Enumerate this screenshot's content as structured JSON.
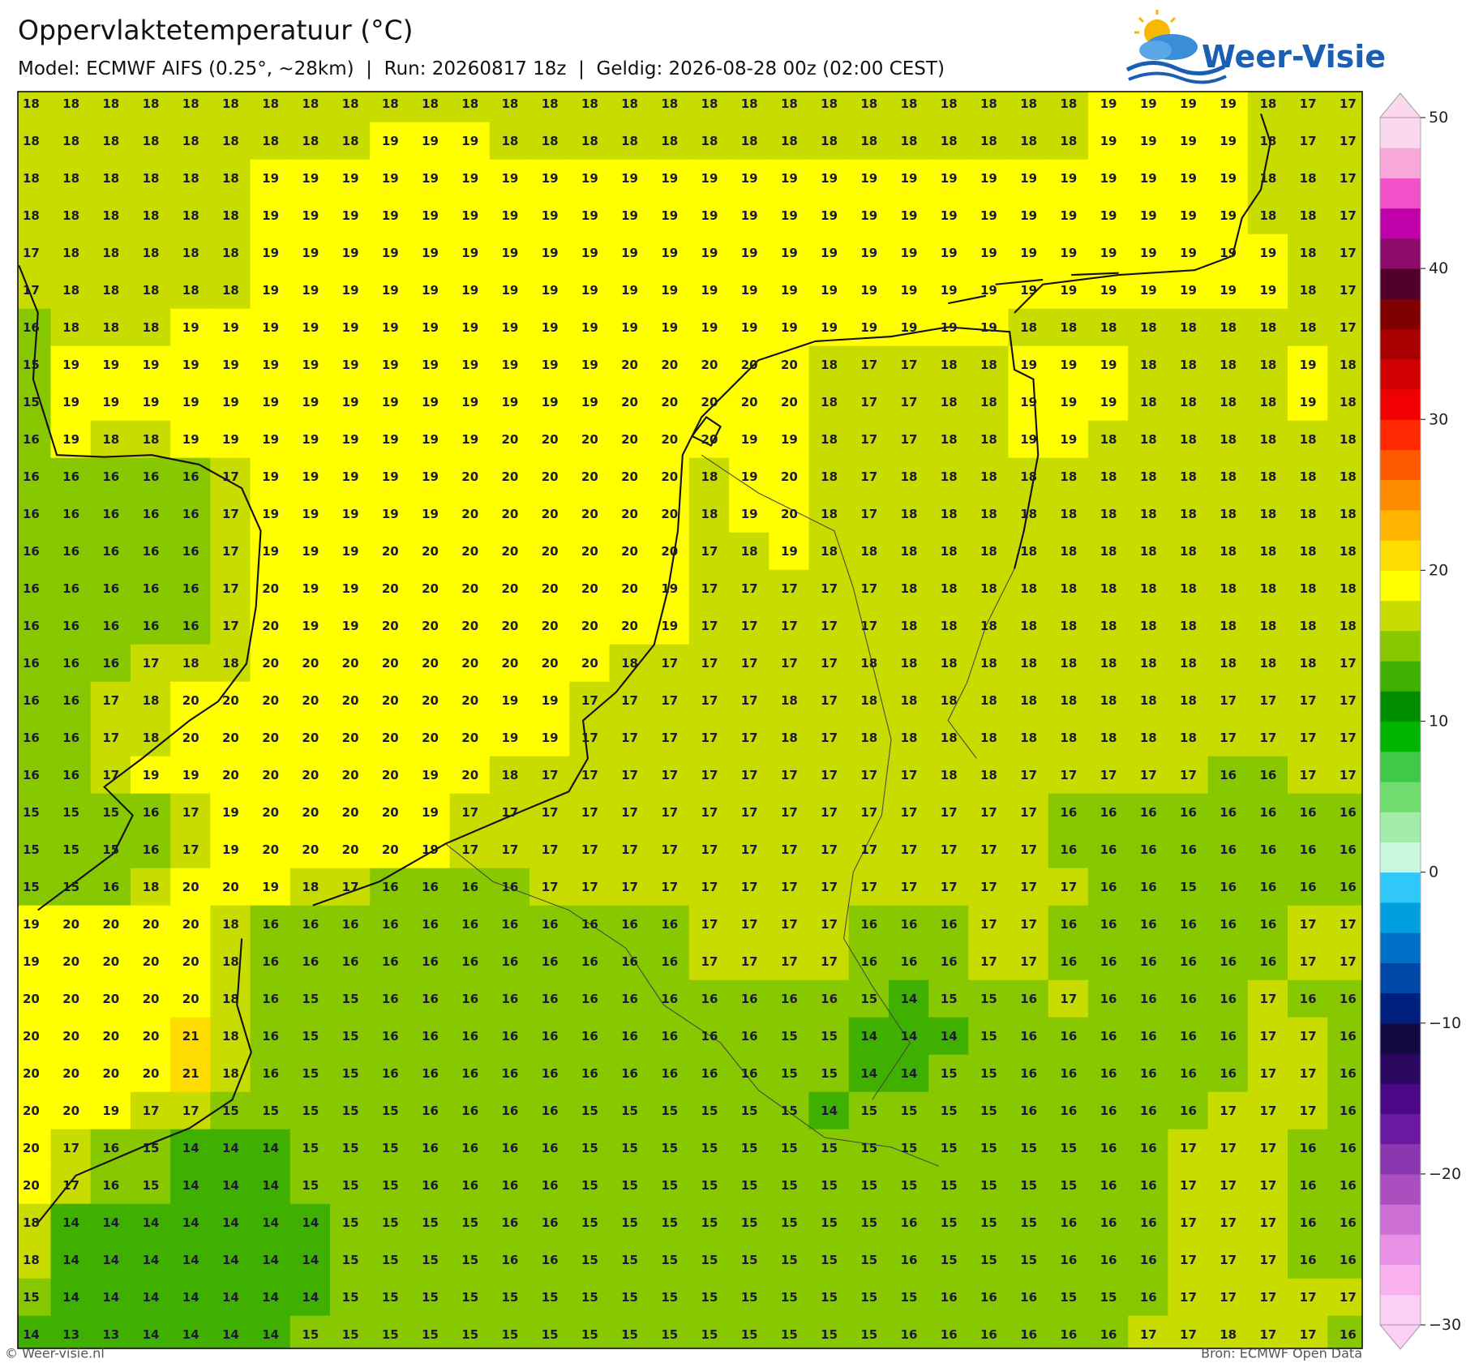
{
  "header": {
    "title": "Oppervlaktetemperatuur (°C)",
    "subtitle": "Model: ECMWF AIFS (0.25°, ~28km)  |  Run: 20260817 18z  |  Geldig: 2026-08-28 00z (02:00 CEST)",
    "logo": "Weer-Visie"
  },
  "map": {
    "values": [
      [
        18,
        18,
        18,
        18,
        18,
        18,
        18,
        18,
        18,
        18,
        18,
        18,
        18,
        18,
        18,
        18,
        18,
        18,
        18,
        18,
        18,
        18,
        18,
        18,
        18,
        18,
        18,
        19,
        19,
        19,
        19,
        18,
        17,
        17
      ],
      [
        18,
        18,
        18,
        18,
        18,
        18,
        18,
        18,
        18,
        19,
        19,
        19,
        18,
        18,
        18,
        18,
        18,
        18,
        18,
        18,
        18,
        18,
        18,
        18,
        18,
        18,
        18,
        19,
        19,
        19,
        19,
        18,
        17,
        17
      ],
      [
        18,
        18,
        18,
        18,
        18,
        18,
        19,
        19,
        19,
        19,
        19,
        19,
        19,
        19,
        19,
        19,
        19,
        19,
        19,
        19,
        19,
        19,
        19,
        19,
        19,
        19,
        19,
        19,
        19,
        19,
        19,
        18,
        18,
        17
      ],
      [
        18,
        18,
        18,
        18,
        18,
        18,
        19,
        19,
        19,
        19,
        19,
        19,
        19,
        19,
        19,
        19,
        19,
        19,
        19,
        19,
        19,
        19,
        19,
        19,
        19,
        19,
        19,
        19,
        19,
        19,
        19,
        18,
        18,
        17
      ],
      [
        17,
        18,
        18,
        18,
        18,
        18,
        19,
        19,
        19,
        19,
        19,
        19,
        19,
        19,
        19,
        19,
        19,
        19,
        19,
        19,
        19,
        19,
        19,
        19,
        19,
        19,
        19,
        19,
        19,
        19,
        19,
        19,
        18,
        17
      ],
      [
        17,
        18,
        18,
        18,
        18,
        18,
        19,
        19,
        19,
        19,
        19,
        19,
        19,
        19,
        19,
        19,
        19,
        19,
        19,
        19,
        19,
        19,
        19,
        19,
        19,
        19,
        19,
        19,
        19,
        19,
        19,
        19,
        18,
        17
      ],
      [
        16,
        18,
        18,
        18,
        19,
        19,
        19,
        19,
        19,
        19,
        19,
        19,
        19,
        19,
        19,
        19,
        19,
        19,
        19,
        19,
        19,
        19,
        19,
        19,
        19,
        18,
        18,
        18,
        18,
        18,
        18,
        18,
        18,
        17
      ],
      [
        15,
        19,
        19,
        19,
        19,
        19,
        19,
        19,
        19,
        19,
        19,
        19,
        19,
        19,
        19,
        20,
        20,
        20,
        20,
        20,
        18,
        17,
        17,
        18,
        18,
        19,
        19,
        19,
        18,
        18,
        18,
        18,
        19,
        18
      ],
      [
        15,
        19,
        19,
        19,
        19,
        19,
        19,
        19,
        19,
        19,
        19,
        19,
        19,
        19,
        19,
        20,
        20,
        20,
        20,
        20,
        18,
        17,
        17,
        18,
        18,
        19,
        19,
        19,
        18,
        18,
        18,
        18,
        19,
        18
      ],
      [
        16,
        19,
        18,
        18,
        19,
        19,
        19,
        19,
        19,
        19,
        19,
        19,
        20,
        20,
        20,
        20,
        20,
        20,
        19,
        19,
        18,
        17,
        17,
        18,
        18,
        19,
        19,
        18,
        18,
        18,
        18,
        18,
        18,
        18
      ],
      [
        16,
        16,
        16,
        16,
        16,
        17,
        19,
        19,
        19,
        19,
        19,
        20,
        20,
        20,
        20,
        20,
        20,
        18,
        19,
        20,
        18,
        17,
        18,
        18,
        18,
        18,
        18,
        18,
        18,
        18,
        18,
        18,
        18,
        18
      ],
      [
        16,
        16,
        16,
        16,
        16,
        17,
        19,
        19,
        19,
        19,
        19,
        20,
        20,
        20,
        20,
        20,
        20,
        18,
        19,
        20,
        18,
        17,
        18,
        18,
        18,
        18,
        18,
        18,
        18,
        18,
        18,
        18,
        18,
        18
      ],
      [
        16,
        16,
        16,
        16,
        16,
        17,
        19,
        19,
        19,
        20,
        20,
        20,
        20,
        20,
        20,
        20,
        20,
        17,
        18,
        19,
        18,
        18,
        18,
        18,
        18,
        18,
        18,
        18,
        18,
        18,
        18,
        18,
        18,
        18
      ],
      [
        16,
        16,
        16,
        16,
        16,
        17,
        20,
        19,
        19,
        20,
        20,
        20,
        20,
        20,
        20,
        20,
        19,
        17,
        17,
        17,
        17,
        17,
        18,
        18,
        18,
        18,
        18,
        18,
        18,
        18,
        18,
        18,
        18,
        18
      ],
      [
        16,
        16,
        16,
        16,
        16,
        17,
        20,
        19,
        19,
        20,
        20,
        20,
        20,
        20,
        20,
        20,
        19,
        17,
        17,
        17,
        17,
        17,
        18,
        18,
        18,
        18,
        18,
        18,
        18,
        18,
        18,
        18,
        18,
        18
      ],
      [
        16,
        16,
        16,
        17,
        18,
        18,
        20,
        20,
        20,
        20,
        20,
        20,
        20,
        20,
        20,
        18,
        17,
        17,
        17,
        17,
        17,
        18,
        18,
        18,
        18,
        18,
        18,
        18,
        18,
        18,
        18,
        18,
        18,
        17
      ],
      [
        16,
        16,
        17,
        18,
        20,
        20,
        20,
        20,
        20,
        20,
        20,
        20,
        19,
        19,
        17,
        17,
        17,
        17,
        17,
        18,
        17,
        18,
        18,
        18,
        18,
        18,
        18,
        18,
        18,
        18,
        17,
        17,
        17,
        17
      ],
      [
        16,
        16,
        17,
        18,
        20,
        20,
        20,
        20,
        20,
        20,
        20,
        20,
        19,
        19,
        17,
        17,
        17,
        17,
        17,
        18,
        17,
        18,
        18,
        18,
        18,
        18,
        18,
        18,
        18,
        18,
        17,
        17,
        17,
        17
      ],
      [
        16,
        16,
        17,
        19,
        19,
        20,
        20,
        20,
        20,
        20,
        19,
        20,
        18,
        17,
        17,
        17,
        17,
        17,
        17,
        17,
        17,
        17,
        17,
        18,
        18,
        17,
        17,
        17,
        17,
        17,
        16,
        16,
        17,
        17
      ],
      [
        15,
        15,
        15,
        16,
        17,
        19,
        20,
        20,
        20,
        20,
        19,
        17,
        17,
        17,
        17,
        17,
        17,
        17,
        17,
        17,
        17,
        17,
        17,
        17,
        17,
        17,
        16,
        16,
        16,
        16,
        16,
        16,
        16,
        16
      ],
      [
        15,
        15,
        15,
        16,
        17,
        19,
        20,
        20,
        20,
        20,
        19,
        17,
        17,
        17,
        17,
        17,
        17,
        17,
        17,
        17,
        17,
        17,
        17,
        17,
        17,
        17,
        16,
        16,
        16,
        16,
        16,
        16,
        16,
        16
      ],
      [
        15,
        15,
        16,
        18,
        20,
        20,
        19,
        18,
        17,
        16,
        16,
        16,
        16,
        17,
        17,
        17,
        17,
        17,
        17,
        17,
        17,
        17,
        17,
        17,
        17,
        17,
        17,
        16,
        16,
        15,
        16,
        16,
        16,
        16
      ],
      [
        19,
        20,
        20,
        20,
        20,
        18,
        16,
        16,
        16,
        16,
        16,
        16,
        16,
        16,
        16,
        16,
        16,
        17,
        17,
        17,
        17,
        16,
        16,
        16,
        17,
        17,
        16,
        16,
        16,
        16,
        16,
        16,
        17,
        17
      ],
      [
        19,
        20,
        20,
        20,
        20,
        18,
        16,
        16,
        16,
        16,
        16,
        16,
        16,
        16,
        16,
        16,
        16,
        17,
        17,
        17,
        17,
        16,
        16,
        16,
        17,
        17,
        16,
        16,
        16,
        16,
        16,
        16,
        17,
        17
      ],
      [
        20,
        20,
        20,
        20,
        20,
        18,
        16,
        15,
        15,
        16,
        16,
        16,
        16,
        16,
        16,
        16,
        16,
        16,
        16,
        16,
        16,
        15,
        14,
        15,
        15,
        16,
        17,
        16,
        16,
        16,
        16,
        17,
        16,
        16
      ],
      [
        20,
        20,
        20,
        20,
        21,
        18,
        16,
        15,
        15,
        16,
        16,
        16,
        16,
        16,
        16,
        16,
        16,
        16,
        16,
        15,
        15,
        14,
        14,
        14,
        15,
        16,
        16,
        16,
        16,
        16,
        16,
        17,
        17,
        16
      ],
      [
        20,
        20,
        20,
        20,
        21,
        18,
        16,
        15,
        15,
        16,
        16,
        16,
        16,
        16,
        16,
        16,
        16,
        16,
        16,
        15,
        15,
        14,
        14,
        15,
        15,
        16,
        16,
        16,
        16,
        16,
        16,
        17,
        17,
        16
      ],
      [
        20,
        20,
        19,
        17,
        17,
        15,
        15,
        15,
        15,
        15,
        16,
        16,
        16,
        16,
        15,
        15,
        15,
        15,
        15,
        15,
        14,
        15,
        15,
        15,
        15,
        16,
        16,
        16,
        16,
        16,
        17,
        17,
        17,
        16
      ],
      [
        20,
        17,
        16,
        15,
        14,
        14,
        14,
        15,
        15,
        15,
        16,
        16,
        16,
        16,
        15,
        15,
        15,
        15,
        15,
        15,
        15,
        15,
        15,
        15,
        15,
        15,
        15,
        16,
        16,
        17,
        17,
        17,
        16,
        16
      ],
      [
        20,
        17,
        16,
        15,
        14,
        14,
        14,
        15,
        15,
        15,
        16,
        16,
        16,
        16,
        15,
        15,
        15,
        15,
        15,
        15,
        15,
        15,
        15,
        15,
        15,
        15,
        15,
        16,
        16,
        17,
        17,
        17,
        16,
        16
      ],
      [
        18,
        14,
        14,
        14,
        14,
        14,
        14,
        14,
        15,
        15,
        15,
        15,
        16,
        16,
        15,
        15,
        15,
        15,
        15,
        15,
        15,
        15,
        16,
        15,
        15,
        15,
        16,
        16,
        16,
        17,
        17,
        17,
        16,
        16
      ],
      [
        18,
        14,
        14,
        14,
        14,
        14,
        14,
        14,
        15,
        15,
        15,
        15,
        16,
        16,
        15,
        15,
        15,
        15,
        15,
        15,
        15,
        15,
        16,
        15,
        15,
        15,
        16,
        16,
        16,
        17,
        17,
        17,
        16,
        16
      ],
      [
        15,
        14,
        14,
        14,
        14,
        14,
        14,
        14,
        15,
        15,
        15,
        15,
        15,
        15,
        15,
        15,
        15,
        15,
        15,
        15,
        15,
        15,
        15,
        16,
        16,
        16,
        15,
        15,
        16,
        17,
        17,
        17,
        17,
        17
      ],
      [
        14,
        13,
        13,
        14,
        14,
        14,
        14,
        15,
        15,
        15,
        15,
        15,
        15,
        15,
        15,
        15,
        15,
        15,
        15,
        15,
        15,
        15,
        16,
        16,
        16,
        16,
        16,
        16,
        17,
        17,
        18,
        17,
        17,
        16
      ]
    ]
  },
  "colorbar": {
    "lim": [
      -30,
      50
    ],
    "ticks": [
      50,
      40,
      30,
      20,
      10,
      0,
      {
        "value": -10,
        "label": "−10"
      },
      {
        "value": -20,
        "label": "−20"
      },
      {
        "value": -30,
        "label": "−30"
      }
    ],
    "colors": [
      "#fcd0f4",
      "#f8b0ee",
      "#e890e6",
      "#cc6ed4",
      "#aa4ec0",
      "#8a38b0",
      "#6a1aa0",
      "#4a0888",
      "#2a0860",
      "#140840",
      "#002080",
      "#0048a8",
      "#0070c8",
      "#00a0e0",
      "#30c8f8",
      "#c8f8e0",
      "#a0eca8",
      "#70dc70",
      "#40c848",
      "#00b400",
      "#008c00",
      "#40b000",
      "#88c800",
      "#c8dc00",
      "#ffff00",
      "#ffdc00",
      "#ffb400",
      "#ff8c00",
      "#ff5a00",
      "#ff2800",
      "#f00000",
      "#d00000",
      "#a80000",
      "#800000",
      "#50002a",
      "#8b0a6a",
      "#c000a8",
      "#f050c8",
      "#f8a8d8",
      "#fcd8ee"
    ]
  },
  "footer": {
    "left": "© Weer-visie.nl",
    "right": "Bron: ECMWF Open Data"
  }
}
